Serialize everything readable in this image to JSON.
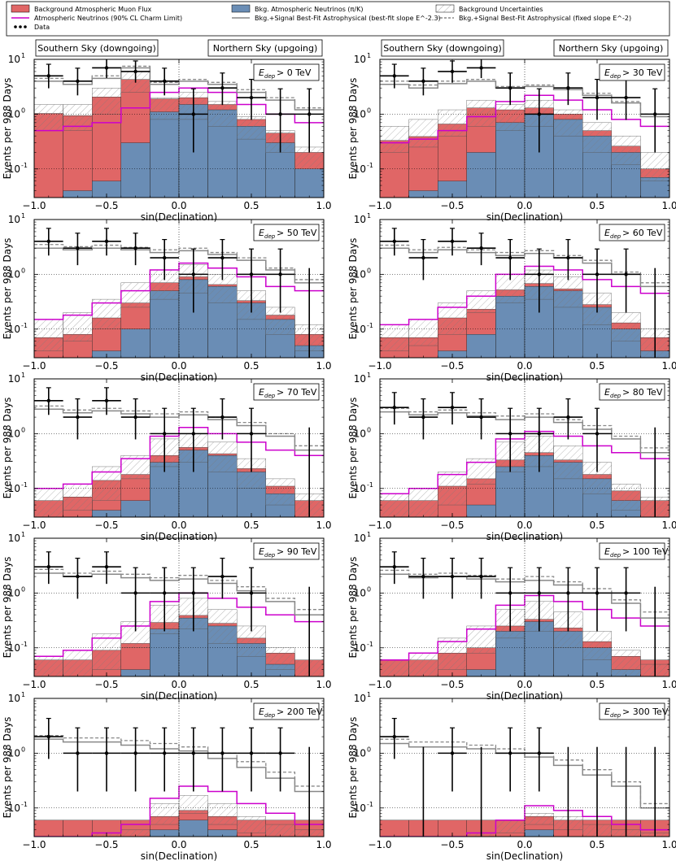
{
  "legend": {
    "items": [
      {
        "label": "Background Atmospheric Muon Flux",
        "kind": "muon"
      },
      {
        "label": "Bkg. Atmospheric Neutrinos (π/K)",
        "kind": "conv"
      },
      {
        "label": "Background Uncertainties",
        "kind": "unc"
      },
      {
        "label": "Atmospheric Neutrinos (90% CL Charm Limit)",
        "kind": "charm"
      },
      {
        "label": "Bkg.+Signal Best-Fit Astrophysical (best-fit slope E^-2.3)",
        "kind": "bf"
      },
      {
        "label": "Bkg.+Signal Best-Fit Astrophysical (fixed slope E^-2)",
        "kind": "fixed"
      },
      {
        "label": "Data",
        "kind": "data"
      }
    ]
  },
  "sky_labels": {
    "south": "Southern Sky (downgoing)",
    "north": "Northern Sky (upgoing)"
  },
  "axis": {
    "xlabel": "sin(Declination)",
    "ylabel": "Events per 988 Days",
    "xticks": [
      "−1.0",
      "−0.5",
      "0.0",
      "0.5",
      "1.0"
    ],
    "ytick_major": [
      "10",
      "10",
      "10"
    ],
    "ytick_exp": [
      "-1",
      "0",
      "1"
    ]
  },
  "colors": {
    "muon": "#e06666",
    "conv": "#6a8db5",
    "charm": "#cc00cc",
    "data": "#000000",
    "bf": "#888888",
    "fixed": "#888888"
  },
  "chart_data": {
    "type": "histogram",
    "x_bin_edges": [
      -1.0,
      -0.8,
      -0.6,
      -0.4,
      -0.2,
      0.0,
      0.2,
      0.4,
      0.6,
      0.8,
      1.0
    ],
    "xlim": [
      -1.0,
      1.0
    ],
    "ylim": [
      0.03,
      10
    ],
    "yscale": "log",
    "panels": [
      {
        "label": "> 0 TeV",
        "threshold_tev": 0,
        "muon": [
          1.0,
          0.9,
          2.0,
          4.0,
          0.8,
          0.5,
          0.3,
          0.2,
          0.15,
          0.1
        ],
        "conv": [
          0.03,
          0.04,
          0.06,
          0.3,
          1.1,
          1.5,
          1.2,
          0.6,
          0.3,
          0.1
        ],
        "unc_lo": [
          0.5,
          0.5,
          1.0,
          2.5,
          0.8,
          0.8,
          0.6,
          0.35,
          0.2,
          0.1
        ],
        "unc_hi": [
          1.5,
          1.5,
          3.0,
          6.0,
          2.0,
          2.5,
          1.7,
          0.9,
          0.5,
          0.25
        ],
        "charm": [
          0.5,
          0.6,
          0.7,
          1.3,
          2.5,
          3.0,
          2.5,
          1.5,
          1.0,
          0.7
        ],
        "bf": [
          4.0,
          3.5,
          4.5,
          7.0,
          3.5,
          4.0,
          3.5,
          2.5,
          1.8,
          1.2
        ],
        "fixed": [
          4.5,
          4.0,
          5.0,
          7.5,
          3.8,
          4.3,
          3.8,
          2.8,
          2.0,
          1.3
        ],
        "data": [
          5,
          4,
          7,
          6,
          4,
          1,
          3,
          2,
          1,
          1
        ]
      },
      {
        "label": "> 30 TeV",
        "threshold_tev": 30,
        "muon": [
          0.3,
          0.35,
          0.6,
          1.1,
          0.5,
          0.3,
          0.2,
          0.1,
          0.06,
          0.03
        ],
        "conv": [
          0.03,
          0.04,
          0.06,
          0.2,
          0.7,
          1.0,
          0.8,
          0.4,
          0.2,
          0.07
        ],
        "unc_lo": [
          0.2,
          0.25,
          0.4,
          0.6,
          0.5,
          0.6,
          0.4,
          0.2,
          0.12,
          0.06
        ],
        "unc_hi": [
          0.6,
          0.8,
          1.2,
          1.8,
          1.5,
          1.8,
          1.2,
          0.7,
          0.4,
          0.2
        ],
        "charm": [
          0.3,
          0.35,
          0.5,
          0.9,
          1.7,
          2.2,
          1.8,
          1.2,
          0.8,
          0.6
        ],
        "bf": [
          3.5,
          3.0,
          3.6,
          4.0,
          3.0,
          3.2,
          2.8,
          2.2,
          1.6,
          0.9
        ],
        "fixed": [
          4.0,
          3.4,
          4.0,
          4.3,
          3.2,
          3.4,
          3.0,
          2.4,
          1.7,
          1.0
        ],
        "data": [
          5,
          4,
          6,
          7,
          3,
          1,
          3,
          2,
          2,
          1
        ]
      },
      {
        "label": "> 50 TeV",
        "threshold_tev": 50,
        "muon": [
          0.04,
          0.05,
          0.12,
          0.2,
          0.2,
          0.1,
          0.05,
          0.03,
          0.03,
          0.03
        ],
        "conv": [
          0.03,
          0.03,
          0.04,
          0.1,
          0.5,
          0.8,
          0.6,
          0.3,
          0.15,
          0.05
        ],
        "unc_lo": [
          0.04,
          0.06,
          0.1,
          0.25,
          0.35,
          0.45,
          0.3,
          0.15,
          0.08,
          0.04
        ],
        "unc_hi": [
          0.15,
          0.2,
          0.35,
          0.7,
          1.2,
          1.5,
          1.0,
          0.5,
          0.25,
          0.12
        ],
        "charm": [
          0.15,
          0.18,
          0.3,
          0.5,
          1.2,
          1.6,
          1.3,
          0.9,
          0.6,
          0.5
        ],
        "bf": [
          3.0,
          2.8,
          3.0,
          2.8,
          2.5,
          2.7,
          2.3,
          1.8,
          1.2,
          0.7
        ],
        "fixed": [
          3.5,
          3.2,
          3.4,
          3.1,
          2.8,
          3.0,
          2.5,
          2.0,
          1.3,
          0.8
        ],
        "data": [
          4,
          3,
          4,
          3,
          2,
          1,
          2,
          1,
          1,
          0
        ]
      },
      {
        "label": "> 60 TeV",
        "threshold_tev": 60,
        "muon": [
          0.04,
          0.04,
          0.12,
          0.15,
          0.12,
          0.08,
          0.04,
          0.03,
          0.03,
          0.03
        ],
        "conv": [
          0.03,
          0.03,
          0.04,
          0.08,
          0.4,
          0.6,
          0.5,
          0.25,
          0.1,
          0.04
        ],
        "unc_lo": [
          0.04,
          0.05,
          0.08,
          0.2,
          0.3,
          0.35,
          0.25,
          0.12,
          0.06,
          0.03
        ],
        "unc_hi": [
          0.12,
          0.15,
          0.3,
          0.5,
          1.0,
          1.2,
          0.9,
          0.45,
          0.2,
          0.1
        ],
        "charm": [
          0.12,
          0.15,
          0.25,
          0.4,
          1.0,
          1.4,
          1.2,
          0.8,
          0.6,
          0.45
        ],
        "bf": [
          3.0,
          2.5,
          2.8,
          2.5,
          2.2,
          2.4,
          2.0,
          1.6,
          1.0,
          0.6
        ],
        "fixed": [
          3.4,
          2.8,
          3.1,
          2.8,
          2.5,
          2.7,
          2.2,
          1.8,
          1.1,
          0.7
        ],
        "data": [
          4,
          2,
          4,
          3,
          2,
          1,
          2,
          1,
          1,
          0
        ]
      },
      {
        "label": "> 70 TeV",
        "threshold_tev": 70,
        "muon": [
          0.03,
          0.04,
          0.1,
          0.12,
          0.1,
          0.06,
          0.03,
          0.03,
          0.03,
          0.03
        ],
        "conv": [
          0.03,
          0.03,
          0.04,
          0.06,
          0.3,
          0.5,
          0.4,
          0.2,
          0.08,
          0.03
        ],
        "unc_lo": [
          0.03,
          0.04,
          0.06,
          0.15,
          0.25,
          0.3,
          0.2,
          0.1,
          0.05,
          0.03
        ],
        "unc_hi": [
          0.1,
          0.12,
          0.25,
          0.4,
          0.8,
          1.0,
          0.7,
          0.35,
          0.15,
          0.08
        ],
        "charm": [
          0.1,
          0.12,
          0.2,
          0.35,
          0.9,
          1.3,
          1.0,
          0.7,
          0.5,
          0.4
        ],
        "bf": [
          2.8,
          2.4,
          2.6,
          2.3,
          2.0,
          2.2,
          1.8,
          1.4,
          0.9,
          0.5
        ],
        "fixed": [
          3.2,
          2.7,
          2.9,
          2.6,
          2.3,
          2.5,
          2.0,
          1.6,
          1.0,
          0.6
        ],
        "data": [
          4,
          2,
          4,
          2,
          1,
          1,
          2,
          1,
          0,
          0
        ]
      },
      {
        "label": "> 80 TeV",
        "threshold_tev": 80,
        "muon": [
          0.03,
          0.03,
          0.08,
          0.1,
          0.08,
          0.05,
          0.03,
          0.03,
          0.03,
          0.03
        ],
        "conv": [
          0.03,
          0.03,
          0.03,
          0.05,
          0.25,
          0.4,
          0.3,
          0.15,
          0.06,
          0.03
        ],
        "unc_lo": [
          0.03,
          0.03,
          0.05,
          0.12,
          0.2,
          0.25,
          0.15,
          0.08,
          0.04,
          0.03
        ],
        "unc_hi": [
          0.08,
          0.1,
          0.2,
          0.35,
          0.7,
          0.9,
          0.6,
          0.3,
          0.12,
          0.07
        ],
        "charm": [
          0.08,
          0.1,
          0.18,
          0.3,
          0.8,
          1.1,
          0.9,
          0.6,
          0.45,
          0.35
        ],
        "bf": [
          2.5,
          2.2,
          2.4,
          2.1,
          1.8,
          2.0,
          1.6,
          1.2,
          0.8,
          0.45
        ],
        "fixed": [
          2.9,
          2.5,
          2.7,
          2.4,
          2.1,
          2.3,
          1.8,
          1.4,
          0.9,
          0.55
        ],
        "data": [
          3,
          2,
          3,
          2,
          1,
          1,
          2,
          1,
          0,
          0
        ]
      },
      {
        "label": "> 90 TeV",
        "threshold_tev": 90,
        "muon": [
          0.03,
          0.03,
          0.06,
          0.08,
          0.07,
          0.04,
          0.03,
          0.03,
          0.03,
          0.03
        ],
        "conv": [
          0.03,
          0.03,
          0.03,
          0.04,
          0.22,
          0.35,
          0.25,
          0.12,
          0.05,
          0.03
        ],
        "unc_lo": [
          0.03,
          0.03,
          0.04,
          0.1,
          0.18,
          0.22,
          0.12,
          0.07,
          0.04,
          0.03
        ],
        "unc_hi": [
          0.07,
          0.09,
          0.18,
          0.3,
          0.6,
          0.8,
          0.5,
          0.25,
          0.1,
          0.06
        ],
        "charm": [
          0.07,
          0.09,
          0.15,
          0.25,
          0.7,
          1.0,
          0.8,
          0.55,
          0.4,
          0.3
        ],
        "bf": [
          2.3,
          2.0,
          2.2,
          1.9,
          1.7,
          1.8,
          1.5,
          1.1,
          0.7,
          0.4
        ],
        "fixed": [
          2.7,
          2.3,
          2.5,
          2.2,
          1.9,
          2.1,
          1.7,
          1.3,
          0.8,
          0.5
        ],
        "data": [
          3,
          2,
          3,
          1,
          1,
          1,
          2,
          1,
          0,
          0
        ]
      },
      {
        "label": "> 100 TeV",
        "threshold_tev": 100,
        "muon": [
          0.03,
          0.03,
          0.05,
          0.06,
          0.05,
          0.03,
          0.03,
          0.03,
          0.03,
          0.03
        ],
        "conv": [
          0.03,
          0.03,
          0.03,
          0.04,
          0.2,
          0.3,
          0.2,
          0.1,
          0.04,
          0.03
        ],
        "unc_lo": [
          0.03,
          0.03,
          0.04,
          0.08,
          0.15,
          0.2,
          0.1,
          0.06,
          0.03,
          0.03
        ],
        "unc_hi": [
          0.06,
          0.08,
          0.15,
          0.25,
          0.5,
          0.7,
          0.45,
          0.2,
          0.09,
          0.05
        ],
        "charm": [
          0.06,
          0.08,
          0.13,
          0.22,
          0.6,
          0.9,
          0.7,
          0.5,
          0.35,
          0.25
        ],
        "bf": [
          2.2,
          1.9,
          2.0,
          1.8,
          1.6,
          1.7,
          1.4,
          1.0,
          0.65,
          0.35
        ],
        "fixed": [
          2.6,
          2.2,
          2.3,
          2.1,
          1.8,
          2.0,
          1.6,
          1.2,
          0.75,
          0.45
        ],
        "data": [
          3,
          2,
          2,
          2,
          1,
          1,
          1,
          1,
          1,
          0
        ]
      },
      {
        "label": "> 200 TeV",
        "threshold_tev": 200,
        "muon": [
          0.03,
          0.03,
          0.03,
          0.03,
          0.03,
          0.03,
          0.03,
          0.03,
          0.03,
          0.03
        ],
        "conv": [
          0.03,
          0.03,
          0.03,
          0.03,
          0.04,
          0.06,
          0.04,
          0.03,
          0.03,
          0.03
        ],
        "unc_lo": [
          0.03,
          0.03,
          0.03,
          0.03,
          0.05,
          0.08,
          0.05,
          0.035,
          0.03,
          0.03
        ],
        "unc_hi": [
          0.03,
          0.03,
          0.035,
          0.04,
          0.12,
          0.17,
          0.12,
          0.07,
          0.05,
          0.04
        ],
        "charm": [
          0.03,
          0.03,
          0.035,
          0.05,
          0.15,
          0.25,
          0.2,
          0.12,
          0.08,
          0.05
        ],
        "bf": [
          1.8,
          1.6,
          1.6,
          1.4,
          1.2,
          1.1,
          0.8,
          0.55,
          0.35,
          0.2
        ],
        "fixed": [
          2.1,
          1.9,
          1.9,
          1.7,
          1.5,
          1.3,
          1.0,
          0.7,
          0.45,
          0.25
        ],
        "data": [
          2,
          1,
          1,
          1,
          1,
          1,
          1,
          1,
          1,
          0
        ]
      },
      {
        "label": "> 300 TeV",
        "threshold_tev": 300,
        "muon": [
          0.03,
          0.03,
          0.03,
          0.03,
          0.03,
          0.03,
          0.03,
          0.03,
          0.03,
          0.03
        ],
        "conv": [
          0.03,
          0.03,
          0.03,
          0.03,
          0.03,
          0.04,
          0.03,
          0.03,
          0.03,
          0.03
        ],
        "unc_lo": [
          0.03,
          0.03,
          0.03,
          0.03,
          0.035,
          0.05,
          0.04,
          0.03,
          0.03,
          0.03
        ],
        "unc_hi": [
          0.03,
          0.03,
          0.03,
          0.035,
          0.06,
          0.08,
          0.07,
          0.05,
          0.04,
          0.035
        ],
        "charm": [
          0.03,
          0.03,
          0.03,
          0.035,
          0.06,
          0.11,
          0.09,
          0.07,
          0.05,
          0.04
        ],
        "bf": [
          1.5,
          1.3,
          1.3,
          1.2,
          1.0,
          0.85,
          0.6,
          0.4,
          0.25,
          0.1
        ],
        "fixed": [
          1.8,
          1.6,
          1.6,
          1.4,
          1.2,
          1.0,
          0.75,
          0.5,
          0.3,
          0.12
        ],
        "data": [
          2,
          0,
          1,
          0,
          1,
          1,
          0,
          0,
          0,
          0
        ]
      }
    ]
  }
}
